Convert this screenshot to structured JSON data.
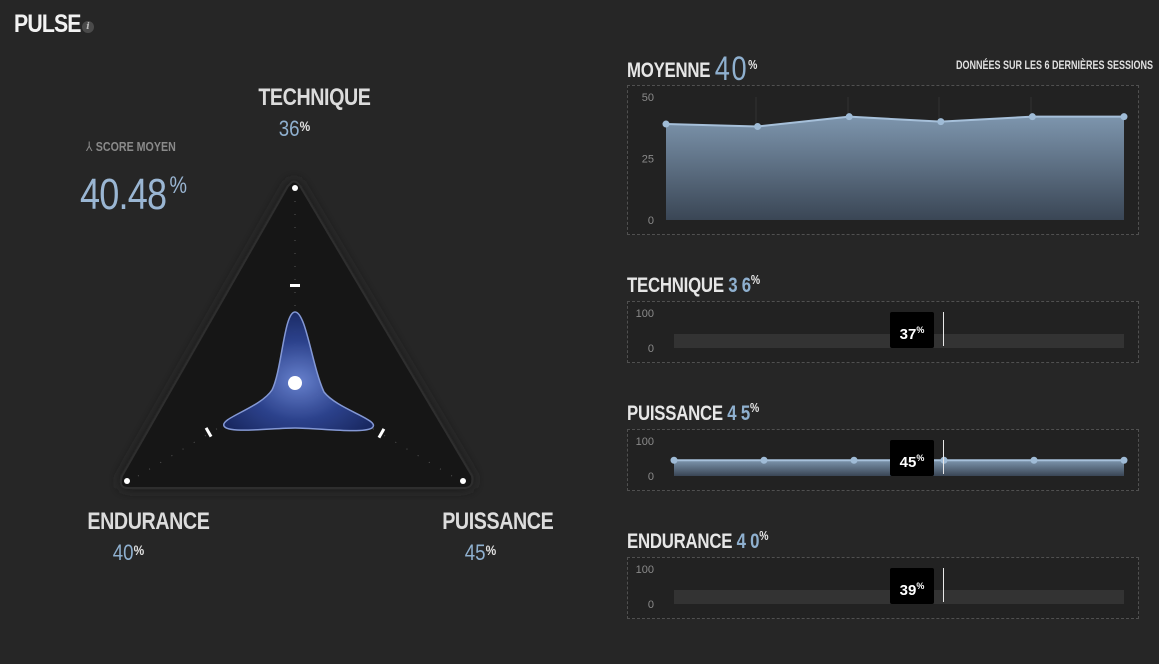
{
  "header": {
    "title": "PULSE",
    "info_icon": "info-icon"
  },
  "radar": {
    "axes": [
      {
        "name": "TECHNIQUE",
        "value": "36",
        "pct": "%"
      },
      {
        "name": "PUISSANCE",
        "value": "45",
        "pct": "%"
      },
      {
        "name": "ENDURANCE",
        "value": "40",
        "pct": "%"
      }
    ],
    "score_label": "SCORE MOYEN",
    "score_icon": "tripod-icon",
    "score_value": "40.48",
    "score_pct": "%"
  },
  "summary": {
    "label": "MOYENNE",
    "value": "40",
    "pct": "%",
    "sessions_note": "DONNÉES SUR LES 6 DERNIÈRES SESSIONS"
  },
  "sections": {
    "technique": {
      "label": "TECHNIQUE",
      "value": "3 6",
      "pct": "%",
      "badge": "37",
      "badge_pct": "%"
    },
    "puissance": {
      "label": "PUISSANCE",
      "value": "4 5",
      "pct": "%",
      "badge": "45",
      "badge_pct": "%"
    },
    "endurance": {
      "label": "ENDURANCE",
      "value": "4 0",
      "pct": "%",
      "badge": "39",
      "badge_pct": "%"
    }
  },
  "chart_data": [
    {
      "type": "area",
      "title": "MOYENNE",
      "x": [
        1,
        2,
        3,
        4,
        5,
        6
      ],
      "values": [
        39,
        38,
        42,
        40,
        42,
        42
      ],
      "ylim": [
        0,
        50
      ],
      "yticks": [
        "50",
        "25",
        "0"
      ],
      "color": "#8fb0cf"
    },
    {
      "type": "bar",
      "title": "TECHNIQUE",
      "values": [],
      "marker": 37,
      "ylim": [
        0,
        100
      ],
      "yticks": [
        "100",
        "0"
      ]
    },
    {
      "type": "area",
      "title": "PUISSANCE",
      "x": [
        1,
        2,
        3,
        4,
        5,
        6
      ],
      "values": [
        45,
        45,
        45,
        45,
        45,
        45
      ],
      "marker": 45,
      "ylim": [
        0,
        100
      ],
      "yticks": [
        "100",
        "0"
      ],
      "color": "#8fb0cf"
    },
    {
      "type": "bar",
      "title": "ENDURANCE",
      "values": [],
      "marker": 39,
      "ylim": [
        0,
        100
      ],
      "yticks": [
        "100",
        "0"
      ]
    }
  ]
}
